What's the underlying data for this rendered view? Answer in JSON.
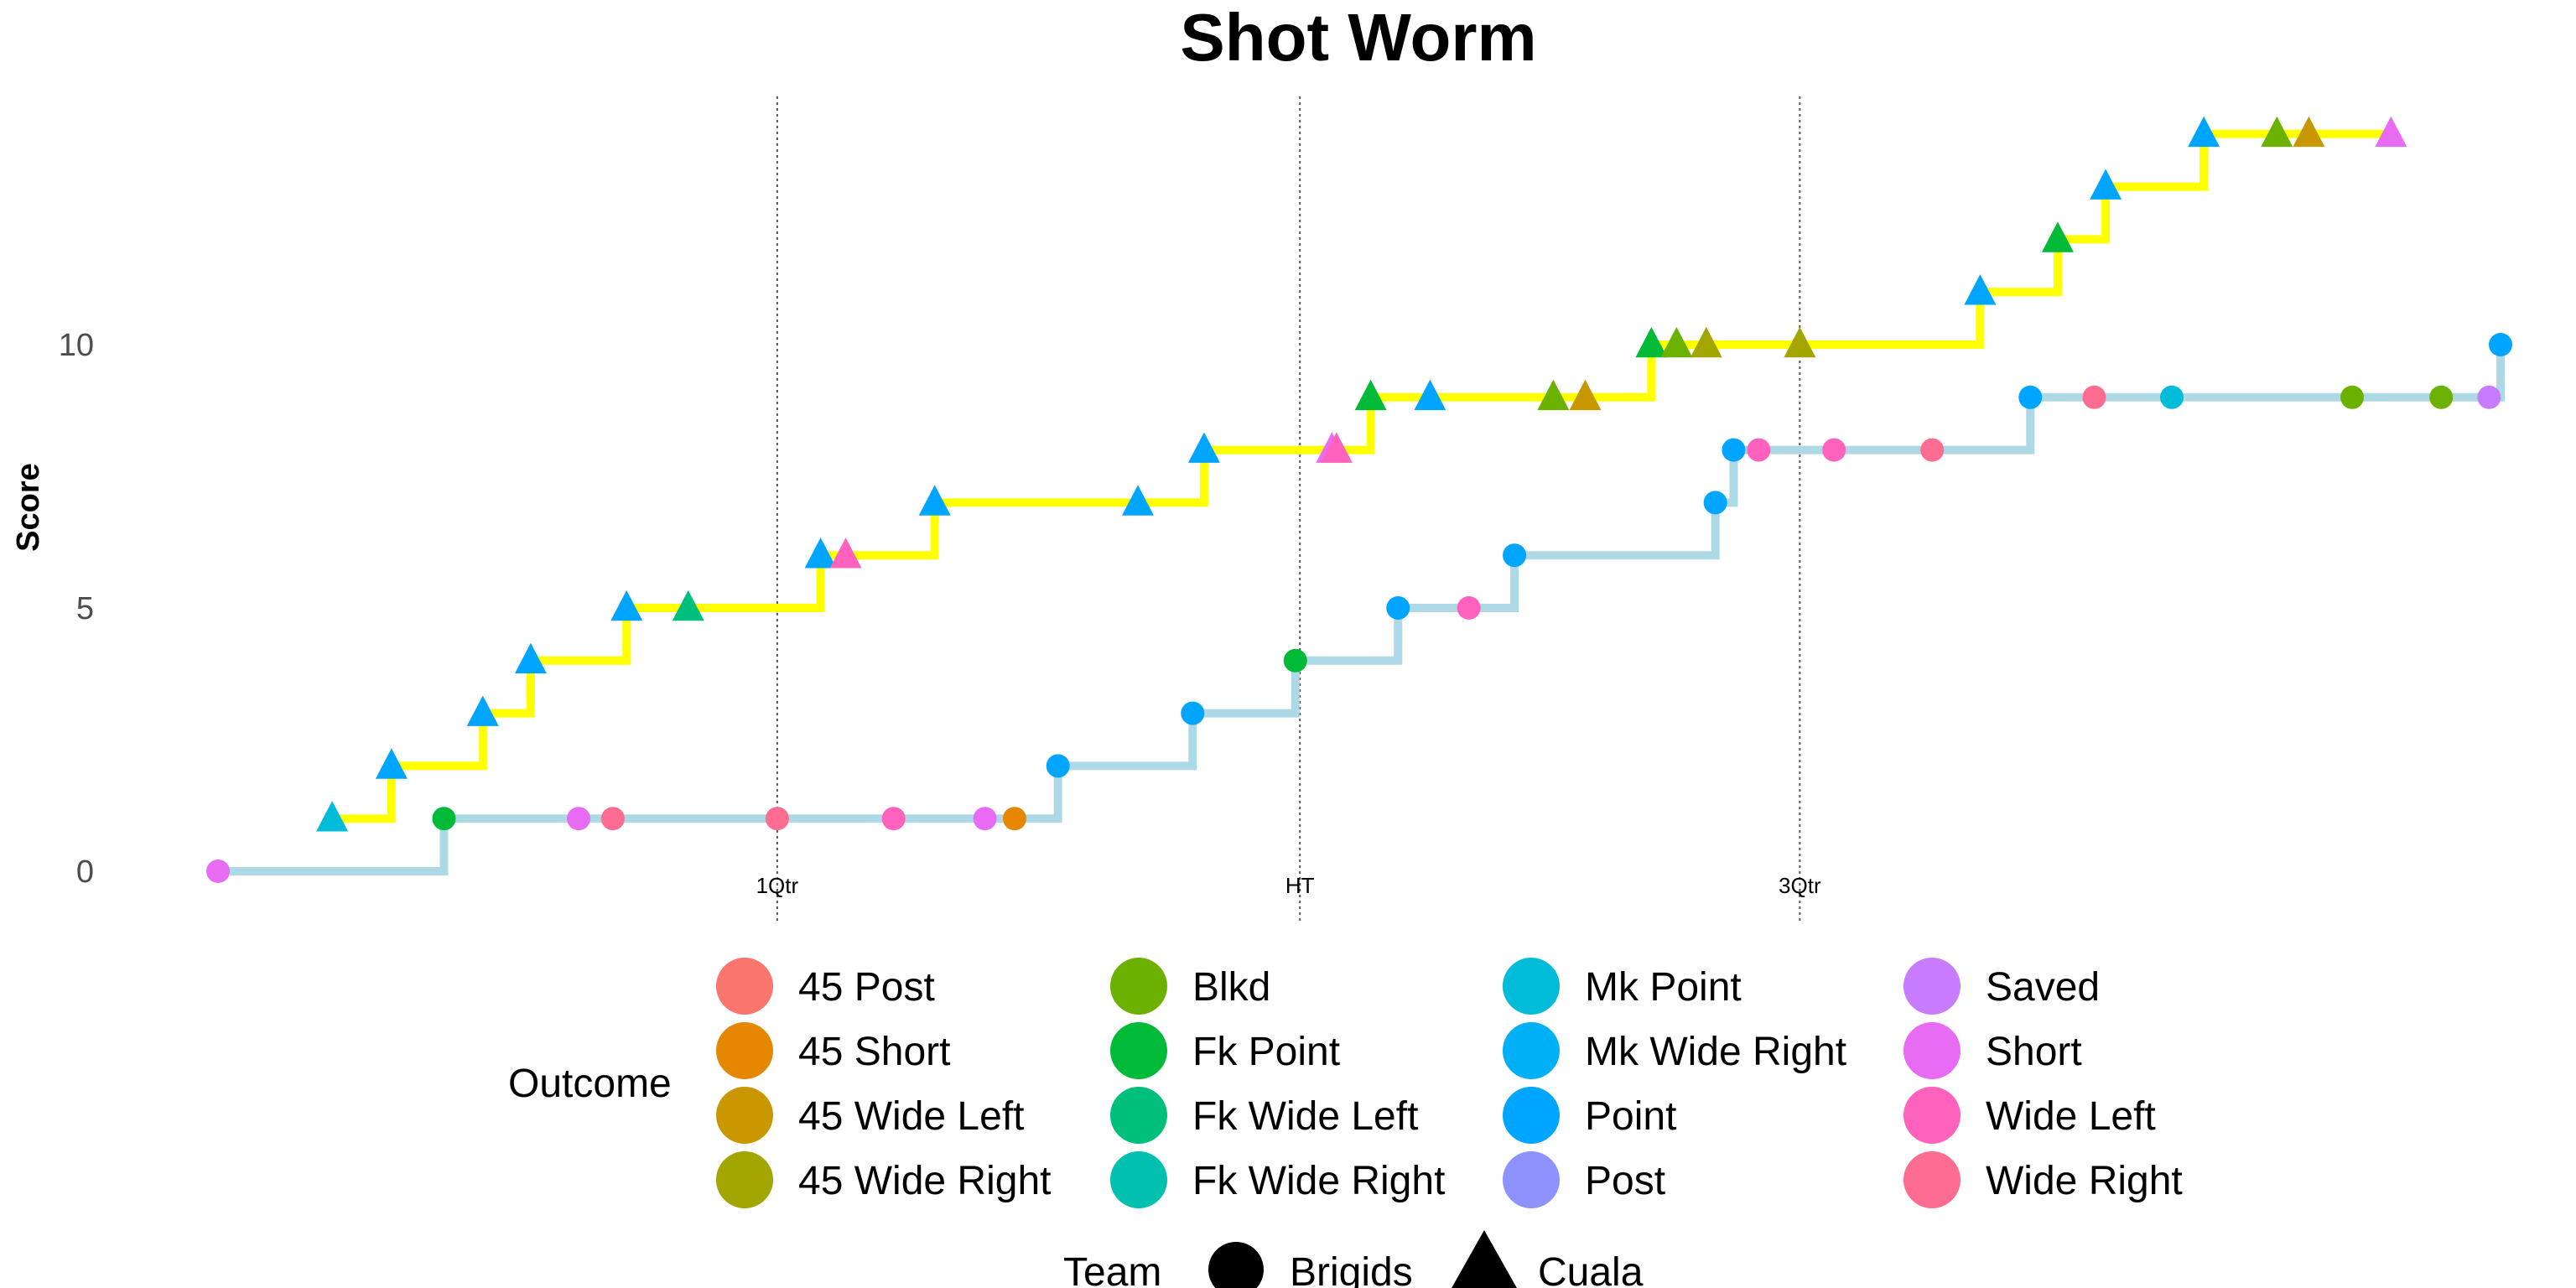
{
  "chart_data": {
    "type": "line",
    "title": "Shot Worm",
    "xlabel": "",
    "ylabel": "Score",
    "ylim": [
      -0.5,
      14.5
    ],
    "xlim": [
      0,
      100
    ],
    "yticks": [
      0,
      5,
      10
    ],
    "grid": false,
    "legend_position": "bottom",
    "quarter_markers": [
      {
        "label": "1Qtr",
        "x": 24.5
      },
      {
        "label": "HT",
        "x": 47.4
      },
      {
        "label": "3Qtr",
        "x": 69.3
      }
    ],
    "series": [
      {
        "name": "Brigids",
        "line_color": "#add8e6",
        "shape": "circle",
        "points": [
          {
            "x": 0.0,
            "y": 0,
            "outcome": "Short"
          },
          {
            "x": 9.9,
            "y": 1,
            "outcome": "Fk Point"
          },
          {
            "x": 15.8,
            "y": 1,
            "outcome": "Short"
          },
          {
            "x": 17.3,
            "y": 1,
            "outcome": "Wide Right"
          },
          {
            "x": 24.5,
            "y": 1,
            "outcome": "Wide Right"
          },
          {
            "x": 29.6,
            "y": 1,
            "outcome": "Wide Left"
          },
          {
            "x": 33.6,
            "y": 1,
            "outcome": "Short"
          },
          {
            "x": 34.9,
            "y": 1,
            "outcome": "45 Short"
          },
          {
            "x": 36.8,
            "y": 2,
            "outcome": "Point"
          },
          {
            "x": 42.7,
            "y": 3,
            "outcome": "Point"
          },
          {
            "x": 47.2,
            "y": 4,
            "outcome": "Fk Point"
          },
          {
            "x": 51.7,
            "y": 5,
            "outcome": "Point"
          },
          {
            "x": 54.8,
            "y": 5,
            "outcome": "Wide Left"
          },
          {
            "x": 56.8,
            "y": 6,
            "outcome": "Point"
          },
          {
            "x": 65.6,
            "y": 7,
            "outcome": "Point"
          },
          {
            "x": 66.4,
            "y": 8,
            "outcome": "Point"
          },
          {
            "x": 67.5,
            "y": 8,
            "outcome": "Wide Left"
          },
          {
            "x": 70.8,
            "y": 8,
            "outcome": "Wide Left"
          },
          {
            "x": 75.1,
            "y": 8,
            "outcome": "Wide Right"
          },
          {
            "x": 79.4,
            "y": 9,
            "outcome": "Point"
          },
          {
            "x": 82.2,
            "y": 9,
            "outcome": "Wide Right"
          },
          {
            "x": 85.6,
            "y": 9,
            "outcome": "Mk Point"
          },
          {
            "x": 93.5,
            "y": 9,
            "outcome": "Blkd"
          },
          {
            "x": 97.4,
            "y": 9,
            "outcome": "Blkd"
          },
          {
            "x": 99.5,
            "y": 9,
            "outcome": "Saved"
          },
          {
            "x": 100.0,
            "y": 10,
            "outcome": "Point"
          }
        ]
      },
      {
        "name": "Cuala",
        "line_color": "#ffff00",
        "shape": "triangle",
        "points": [
          {
            "x": 5.0,
            "y": 1,
            "outcome": "Mk Point"
          },
          {
            "x": 7.6,
            "y": 2,
            "outcome": "Point"
          },
          {
            "x": 11.6,
            "y": 3,
            "outcome": "Point"
          },
          {
            "x": 13.7,
            "y": 4,
            "outcome": "Point"
          },
          {
            "x": 17.9,
            "y": 5,
            "outcome": "Point"
          },
          {
            "x": 20.6,
            "y": 5,
            "outcome": "Fk Wide Left"
          },
          {
            "x": 26.4,
            "y": 6,
            "outcome": "Point"
          },
          {
            "x": 27.5,
            "y": 6,
            "outcome": "Wide Left"
          },
          {
            "x": 31.4,
            "y": 7,
            "outcome": "Point"
          },
          {
            "x": 40.3,
            "y": 7,
            "outcome": "Point"
          },
          {
            "x": 43.2,
            "y": 8,
            "outcome": "Point"
          },
          {
            "x": 48.8,
            "y": 8,
            "outcome": "Short"
          },
          {
            "x": 49.0,
            "y": 8,
            "outcome": "Wide Left"
          },
          {
            "x": 50.5,
            "y": 9,
            "outcome": "Fk Point"
          },
          {
            "x": 53.1,
            "y": 9,
            "outcome": "Point"
          },
          {
            "x": 58.5,
            "y": 9,
            "outcome": "Blkd"
          },
          {
            "x": 59.9,
            "y": 9,
            "outcome": "45 Wide Left"
          },
          {
            "x": 62.8,
            "y": 10,
            "outcome": "Fk Point"
          },
          {
            "x": 63.9,
            "y": 10,
            "outcome": "Blkd"
          },
          {
            "x": 65.2,
            "y": 10,
            "outcome": "45 Wide Right"
          },
          {
            "x": 69.3,
            "y": 10,
            "outcome": "45 Wide Right"
          },
          {
            "x": 77.2,
            "y": 11,
            "outcome": "Point"
          },
          {
            "x": 80.6,
            "y": 12,
            "outcome": "Fk Point"
          },
          {
            "x": 82.7,
            "y": 13,
            "outcome": "Point"
          },
          {
            "x": 87.0,
            "y": 14,
            "outcome": "Point"
          },
          {
            "x": 90.2,
            "y": 14,
            "outcome": "Blkd"
          },
          {
            "x": 91.6,
            "y": 14,
            "outcome": "45 Wide Left"
          },
          {
            "x": 95.2,
            "y": 14,
            "outcome": "Short"
          }
        ]
      }
    ],
    "outcome_legend": {
      "title": "Outcome",
      "items": [
        {
          "label": "45 Post",
          "color": "#F8766D"
        },
        {
          "label": "45 Short",
          "color": "#E58700"
        },
        {
          "label": "45 Wide Left",
          "color": "#C99800"
        },
        {
          "label": "45 Wide Right",
          "color": "#A3A500"
        },
        {
          "label": "Blkd",
          "color": "#6BB100"
        },
        {
          "label": "Fk Point",
          "color": "#00BA38"
        },
        {
          "label": "Fk Wide Left",
          "color": "#00BF7D"
        },
        {
          "label": "Fk Wide Right",
          "color": "#00C0AF"
        },
        {
          "label": "Mk Point",
          "color": "#00BCD8"
        },
        {
          "label": "Mk Wide Right",
          "color": "#00B0F6"
        },
        {
          "label": "Point",
          "color": "#00A5FF"
        },
        {
          "label": "Post",
          "color": "#8D92FF"
        },
        {
          "label": "Saved",
          "color": "#C77CFF"
        },
        {
          "label": "Short",
          "color": "#E76BF3"
        },
        {
          "label": "Wide Left",
          "color": "#FF62BC"
        },
        {
          "label": "Wide Right",
          "color": "#FF6C91"
        }
      ]
    },
    "team_legend": {
      "title": "Team",
      "items": [
        {
          "label": "Brigids",
          "shape": "circle"
        },
        {
          "label": "Cuala",
          "shape": "triangle"
        }
      ]
    }
  }
}
